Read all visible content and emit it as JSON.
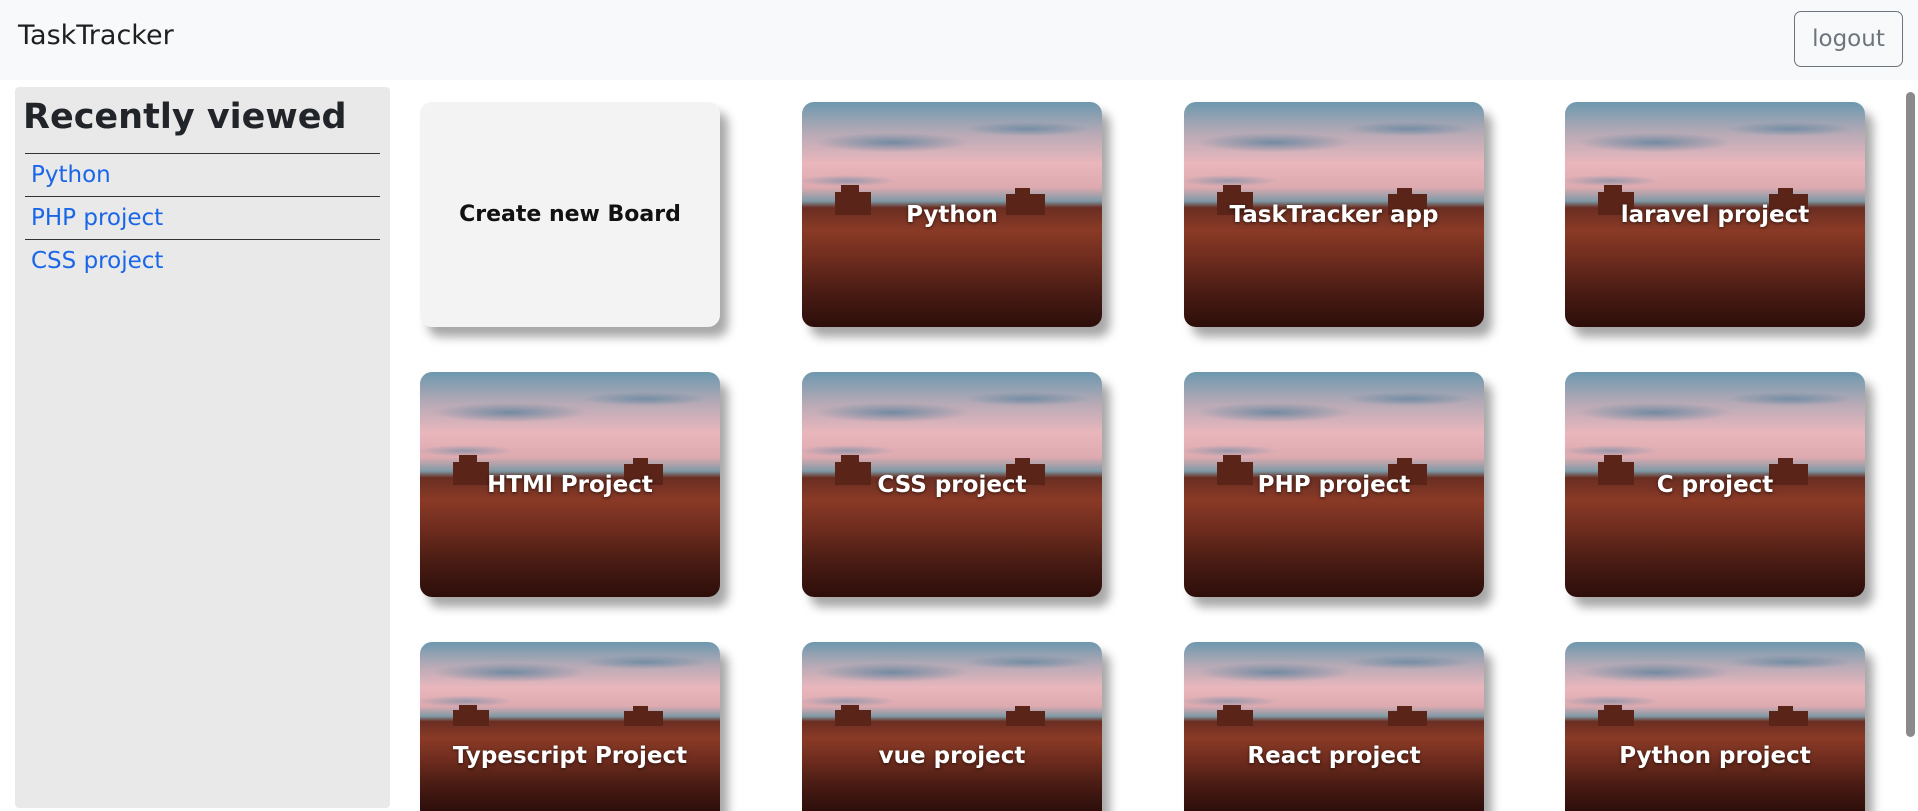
{
  "app": {
    "title": "TaskTracker",
    "logout_label": "logout"
  },
  "sidebar": {
    "title": "Recently viewed",
    "items": [
      {
        "label": "Python"
      },
      {
        "label": "PHP project"
      },
      {
        "label": "CSS project"
      }
    ]
  },
  "boards": {
    "create_label": "Create new Board",
    "items": [
      {
        "label": "Python"
      },
      {
        "label": "TaskTracker app"
      },
      {
        "label": "laravel project"
      },
      {
        "label": "HTMl Project"
      },
      {
        "label": "CSS project"
      },
      {
        "label": "PHP project"
      },
      {
        "label": "C project"
      },
      {
        "label": "Typescript Project"
      },
      {
        "label": "vue project"
      },
      {
        "label": "React project"
      },
      {
        "label": "Python project"
      }
    ]
  }
}
